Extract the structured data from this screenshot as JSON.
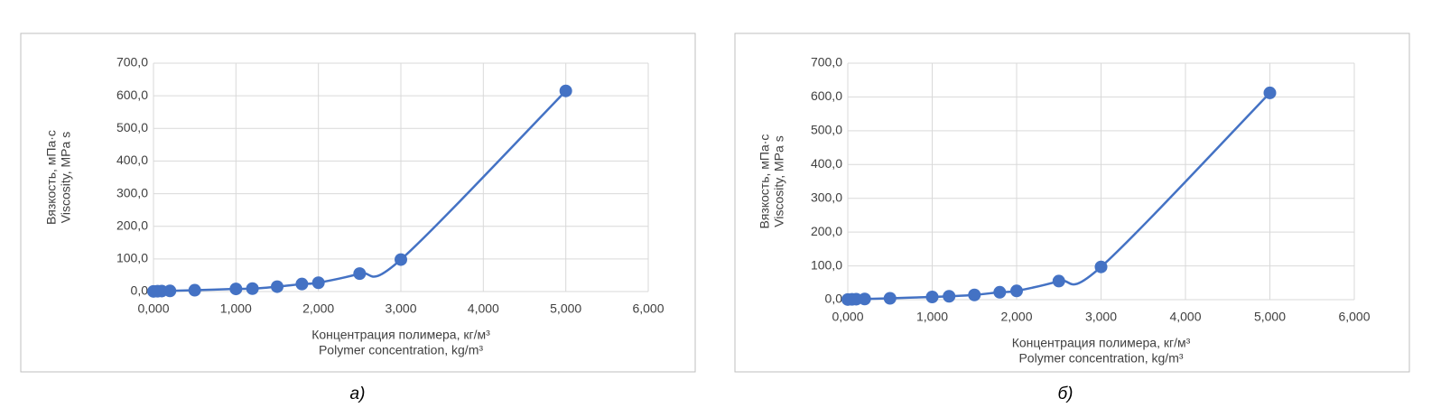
{
  "chart_data": [
    {
      "type": "line",
      "caption": "а)",
      "x_label": [
        "Концентрация полимера, кг/м³",
        "Polymer concentration, kg/m³"
      ],
      "y_label": [
        "Вязкость, мПа·с",
        "Viscosity, MPa s"
      ],
      "x": [
        0,
        0.05,
        0.1,
        0.2,
        0.5,
        1,
        1.2,
        1.5,
        1.8,
        2,
        2.5,
        3,
        5
      ],
      "series": [
        {
          "color": "#4472c4",
          "values": [
            0.5,
            1,
            1.5,
            2,
            4,
            8,
            9,
            15,
            23,
            27,
            55,
            98,
            615
          ]
        }
      ],
      "xlim": [
        0,
        6
      ],
      "ylim": [
        0,
        700
      ],
      "xticks": [
        {
          "value": 0,
          "label": "0,000"
        },
        {
          "value": 1,
          "label": "1,000"
        },
        {
          "value": 2,
          "label": "2,000"
        },
        {
          "value": 3,
          "label": "3,000"
        },
        {
          "value": 4,
          "label": "4,000"
        },
        {
          "value": 5,
          "label": "5,000"
        },
        {
          "value": 6,
          "label": "6,000"
        }
      ],
      "yticks": [
        {
          "value": 0,
          "label": "0,0"
        },
        {
          "value": 100,
          "label": "100,0"
        },
        {
          "value": 200,
          "label": "200,0"
        },
        {
          "value": 300,
          "label": "300,0"
        },
        {
          "value": 400,
          "label": "400,0"
        },
        {
          "value": 500,
          "label": "500,0"
        },
        {
          "value": 600,
          "label": "600,0"
        },
        {
          "value": 700,
          "label": "700,0"
        }
      ],
      "grid": true
    },
    {
      "type": "line",
      "caption": "б)",
      "x_label": [
        "Концентрация полимера, кг/м³",
        "Polymer concentration, kg/m³"
      ],
      "y_label": [
        "Вязкость, мПа·с",
        "Viscosity, MPa s"
      ],
      "x": [
        0,
        0.05,
        0.1,
        0.2,
        0.5,
        1,
        1.2,
        1.5,
        1.8,
        2,
        2.5,
        3,
        5
      ],
      "series": [
        {
          "color": "#4472c4",
          "values": [
            0.5,
            1,
            1.5,
            2,
            4,
            8,
            10,
            14,
            22,
            26,
            55,
            97,
            612
          ]
        }
      ],
      "xlim": [
        0,
        6
      ],
      "ylim": [
        0,
        700
      ],
      "xticks": [
        {
          "value": 0,
          "label": "0,000"
        },
        {
          "value": 1,
          "label": "1,000"
        },
        {
          "value": 2,
          "label": "2,000"
        },
        {
          "value": 3,
          "label": "3,000"
        },
        {
          "value": 4,
          "label": "4,000"
        },
        {
          "value": 5,
          "label": "5,000"
        },
        {
          "value": 6,
          "label": "6,000"
        }
      ],
      "yticks": [
        {
          "value": 0,
          "label": "0,0"
        },
        {
          "value": 100,
          "label": "100,0"
        },
        {
          "value": 200,
          "label": "200,0"
        },
        {
          "value": 300,
          "label": "300,0"
        },
        {
          "value": 400,
          "label": "400,0"
        },
        {
          "value": 500,
          "label": "500,0"
        },
        {
          "value": 600,
          "label": "600,0"
        },
        {
          "value": 700,
          "label": "700,0"
        }
      ],
      "grid": true
    }
  ]
}
